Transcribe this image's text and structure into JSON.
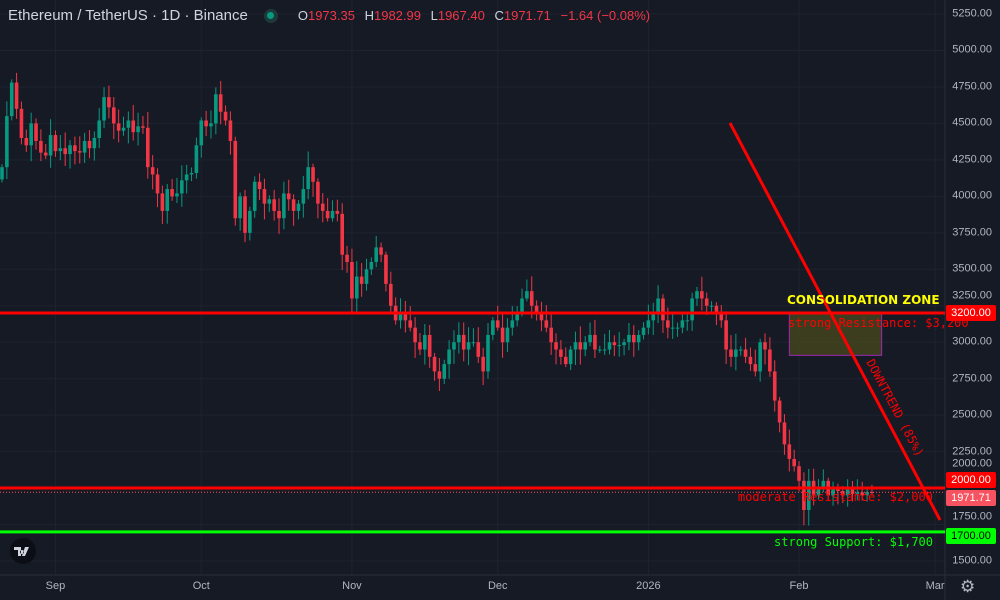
{
  "header": {
    "title": "Ethereum / TetherUS · 1D · Binance",
    "open_label": "O",
    "open": "1973.35",
    "high_label": "H",
    "high": "1982.99",
    "low_label": "L",
    "low": "1967.40",
    "close_label": "C",
    "close": "1971.71",
    "change": "−1.64 (−0.08%)",
    "status_dot_color": "#089981"
  },
  "chart_data": {
    "type": "candlestick",
    "symbol": "ETHUSDT",
    "interval": "1D",
    "ylim": [
      1425,
      5300
    ],
    "y_ticks": [
      "5250.00",
      "5000.00",
      "4750.00",
      "4500.00",
      "4250.00",
      "4000.00",
      "3750.00",
      "3500.00",
      "3250.00",
      "3000.00",
      "2750.00",
      "2500.00",
      "2250.00",
      "2000.00",
      "1750.00",
      "1500.00"
    ],
    "x_ticks": [
      {
        "label": "Sep",
        "day": 11
      },
      {
        "label": "Oct",
        "day": 41
      },
      {
        "label": "Nov",
        "day": 72
      },
      {
        "label": "Dec",
        "day": 102
      },
      {
        "label": "2026",
        "day": 133
      },
      {
        "label": "Feb",
        "day": 164
      },
      {
        "label": "Mar",
        "day": 192
      }
    ],
    "up_color": "#089981",
    "down_color": "#f23645",
    "closes": [
      4200,
      4550,
      4780,
      4600,
      4400,
      4350,
      4500,
      4380,
      4300,
      4280,
      4420,
      4310,
      4330,
      4290,
      4350,
      4310,
      4300,
      4380,
      4330,
      4400,
      4520,
      4680,
      4610,
      4500,
      4450,
      4470,
      4520,
      4440,
      4480,
      4470,
      4200,
      4150,
      4020,
      3900,
      4050,
      4000,
      4020,
      4110,
      4150,
      4160,
      4350,
      4520,
      4480,
      4500,
      4700,
      4580,
      4520,
      4380,
      3850,
      4000,
      3750,
      3900,
      4100,
      4050,
      3950,
      3980,
      3900,
      3850,
      4020,
      3980,
      3900,
      3950,
      4050,
      4200,
      4100,
      3950,
      3900,
      3850,
      3900,
      3880,
      3600,
      3550,
      3300,
      3450,
      3400,
      3500,
      3550,
      3650,
      3600,
      3400,
      3250,
      3150,
      3200,
      3150,
      3100,
      3000,
      2950,
      3050,
      2900,
      2800,
      2750,
      2850,
      2950,
      3000,
      3050,
      2950,
      3000,
      3000,
      2900,
      2800,
      3050,
      3150,
      3100,
      3000,
      3100,
      3150,
      3200,
      3300,
      3350,
      3250,
      3200,
      3150,
      3100,
      3000,
      2950,
      2900,
      2850,
      2950,
      3000,
      2950,
      3000,
      3050,
      2950,
      2950,
      2950,
      3000,
      2980,
      2980,
      3000,
      3050,
      3000,
      3050,
      3100,
      3150,
      3200,
      3300,
      3150,
      3100,
      3100,
      3100,
      3150,
      3150,
      3300,
      3350,
      3300,
      3250,
      3250,
      3200,
      3150,
      2950,
      2900,
      2950,
      2950,
      2900,
      2850,
      2800,
      3000,
      2950,
      2800,
      2600,
      2450,
      2300,
      2200,
      2150,
      2050,
      1850,
      2050,
      1950,
      2000,
      2050,
      1950,
      2000,
      1980,
      1950,
      2000,
      1960,
      1970,
      1950,
      1973.35,
      1971.71
    ],
    "levels": [
      {
        "price": 3200,
        "label": "3200.00",
        "color": "#ff0000",
        "note": "strong Resistance: $3,200"
      },
      {
        "price": 2000,
        "label": "2000.00",
        "color": "#ff0000",
        "note": "moderate Resistance: $2,000"
      },
      {
        "price": 1700,
        "label": "1700.00",
        "color": "#00ff00",
        "note": "strong Support: $1,700"
      }
    ],
    "last_price": {
      "price": 1971.71,
      "label": "1971.71",
      "color": "#f7525f"
    },
    "trendline": {
      "label": "DOWNTREND (85%)",
      "color": "#ff0000",
      "from": {
        "day": 150,
        "price": 4500
      },
      "to": {
        "day": 194,
        "price": 1780
      }
    },
    "zone": {
      "label": "CONSOLIDATION ZONE",
      "label_color": "#ffff00",
      "from_day": 162,
      "to_day": 181,
      "top": 3200,
      "bottom": 2910,
      "fill": "#4a4a1e",
      "border": "#9c27b0"
    }
  },
  "logo_text": "TV",
  "settings_icon": "gear-icon"
}
